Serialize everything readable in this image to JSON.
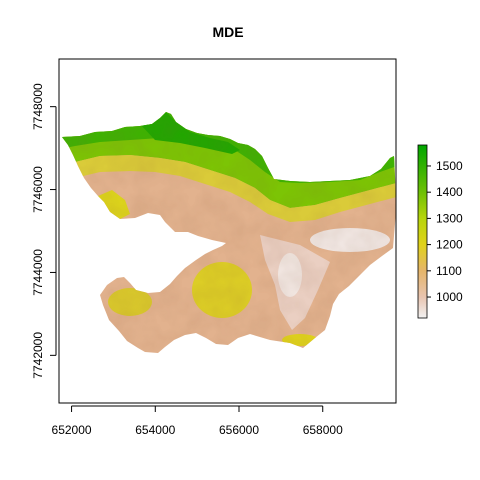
{
  "chart_data": {
    "type": "raster-map",
    "title": "MDE",
    "xlabel": "",
    "ylabel": "",
    "xlim": [
      651700,
      659750
    ],
    "ylim": [
      7740850,
      7749150
    ],
    "x_ticks": [
      652000,
      654000,
      656000,
      658000
    ],
    "y_ticks": [
      7742000,
      7744000,
      7746000,
      7748000
    ],
    "x_tick_labels": [
      "652000",
      "654000",
      "656000",
      "658000"
    ],
    "y_tick_labels": [
      "7742000",
      "7744000",
      "7746000",
      "7748000"
    ],
    "legend": {
      "placement": "right",
      "min": 920,
      "max": 1580,
      "ticks": [
        1000,
        1100,
        1200,
        1300,
        1400,
        1500
      ],
      "tick_labels": [
        "1000",
        "1100",
        "1200",
        "1300",
        "1400",
        "1500"
      ],
      "color_stops": [
        {
          "value": 920,
          "color": "#f2f2f2"
        },
        {
          "value": 1000,
          "color": "#e8c4b0"
        },
        {
          "value": 1100,
          "color": "#e5b56a"
        },
        {
          "value": 1200,
          "color": "#e0d21a"
        },
        {
          "value": 1300,
          "color": "#b7d50c"
        },
        {
          "value": 1400,
          "color": "#6ec006"
        },
        {
          "value": 1580,
          "color": "#00a600"
        }
      ]
    }
  }
}
